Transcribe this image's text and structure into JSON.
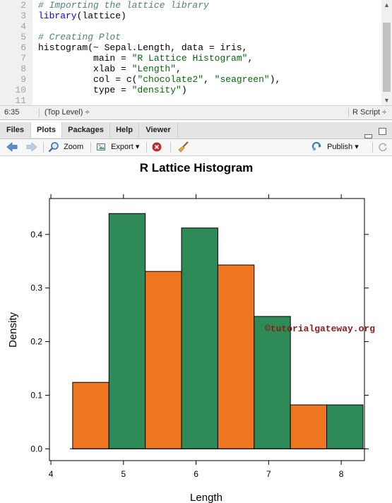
{
  "editor": {
    "lines": [
      {
        "num": "2",
        "tokens": [
          {
            "t": "# Importing the lattice library",
            "c": "comment"
          }
        ]
      },
      {
        "num": "3",
        "tokens": [
          {
            "t": "library",
            "c": "fn"
          },
          {
            "t": "(lattice)",
            "c": "plain"
          }
        ]
      },
      {
        "num": "4",
        "tokens": []
      },
      {
        "num": "5",
        "tokens": [
          {
            "t": "# Creating Plot",
            "c": "comment"
          }
        ]
      },
      {
        "num": "6",
        "tokens": [
          {
            "t": "histogram(~ Sepal.Length, data = iris,",
            "c": "plain"
          }
        ]
      },
      {
        "num": "7",
        "tokens": [
          {
            "t": "          main = ",
            "c": "plain"
          },
          {
            "t": "\"R Lattice Histogram\"",
            "c": "str"
          },
          {
            "t": ",",
            "c": "plain"
          }
        ]
      },
      {
        "num": "8",
        "tokens": [
          {
            "t": "          xlab = ",
            "c": "plain"
          },
          {
            "t": "\"Length\"",
            "c": "str"
          },
          {
            "t": ",",
            "c": "plain"
          }
        ]
      },
      {
        "num": "9",
        "tokens": [
          {
            "t": "          col = c(",
            "c": "plain"
          },
          {
            "t": "\"chocolate2\"",
            "c": "str"
          },
          {
            "t": ", ",
            "c": "plain"
          },
          {
            "t": "\"seagreen\"",
            "c": "str"
          },
          {
            "t": "),",
            "c": "plain"
          }
        ]
      },
      {
        "num": "10",
        "tokens": [
          {
            "t": "          type = ",
            "c": "plain"
          },
          {
            "t": "\"density\"",
            "c": "str"
          },
          {
            "t": ")",
            "c": "plain"
          }
        ]
      },
      {
        "num": "11",
        "tokens": []
      }
    ]
  },
  "status": {
    "cursor": "6:35",
    "scope": "(Top Level) ÷",
    "filetype": "R Script ÷"
  },
  "pane": {
    "tabs": [
      "Files",
      "Plots",
      "Packages",
      "Help",
      "Viewer"
    ],
    "active_tab": "Plots"
  },
  "toolbar": {
    "zoom_label": "Zoom",
    "export_label": "Export ▾",
    "publish_label": "Publish ▾"
  },
  "colors": {
    "chocolate2": "#ee7621",
    "seagreen": "#2e8b57",
    "editor_comment": "#4f7f7f",
    "editor_string": "#036a07",
    "editor_function": "#0000ff"
  },
  "chart_data": {
    "type": "bar",
    "title": "R Lattice Histogram",
    "xlabel": "Length",
    "ylabel": "Density",
    "bins": [
      {
        "x0": 4.3,
        "x1": 4.8,
        "density": 0.124,
        "color": "chocolate2"
      },
      {
        "x0": 4.8,
        "x1": 5.3,
        "density": 0.439,
        "color": "seagreen"
      },
      {
        "x0": 5.3,
        "x1": 5.8,
        "density": 0.331,
        "color": "chocolate2"
      },
      {
        "x0": 5.8,
        "x1": 6.3,
        "density": 0.412,
        "color": "seagreen"
      },
      {
        "x0": 6.3,
        "x1": 6.8,
        "density": 0.343,
        "color": "chocolate2"
      },
      {
        "x0": 6.8,
        "x1": 7.3,
        "density": 0.247,
        "color": "seagreen"
      },
      {
        "x0": 7.3,
        "x1": 7.8,
        "density": 0.082,
        "color": "chocolate2"
      },
      {
        "x0": 7.8,
        "x1": 8.3,
        "density": 0.082,
        "color": "seagreen"
      }
    ],
    "xticks": [
      4,
      5,
      6,
      7,
      8
    ],
    "yticks": [
      0.0,
      0.1,
      0.2,
      0.3,
      0.4
    ],
    "ytick_labels": [
      "0.0",
      "0.1",
      "0.2",
      "0.3",
      "0.4"
    ],
    "xlim": [
      3.98,
      8.32
    ],
    "ylim": [
      -0.022,
      0.467
    ],
    "grid": false,
    "legend": "none"
  },
  "watermark": "©tutorialgateway.org"
}
